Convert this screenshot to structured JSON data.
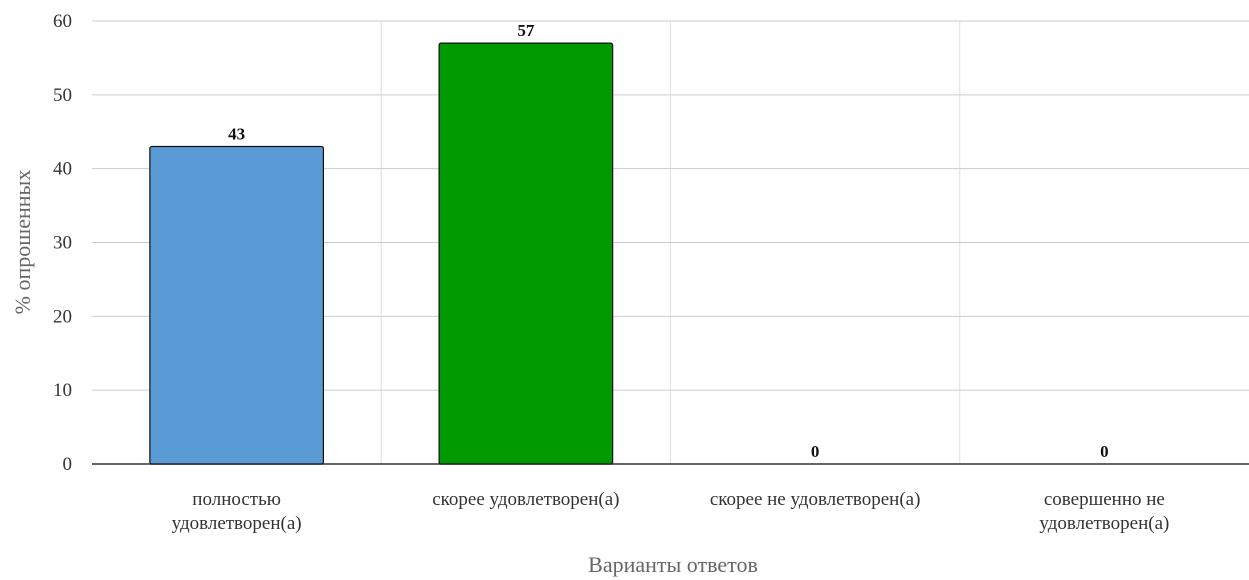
{
  "chart_data": {
    "type": "bar",
    "categories": [
      [
        "полностью",
        "удовлетворен(а)"
      ],
      [
        "скорее удовлетворен(а)"
      ],
      [
        "скорее не удовлетворен(а)"
      ],
      [
        "совершенно не",
        "удовлетворен(а)"
      ]
    ],
    "values": [
      43,
      57,
      0,
      0
    ],
    "colors": [
      "#5b9bd5",
      "#009900",
      "#5b9bd5",
      "#5b9bd5"
    ],
    "xlabel": "Варианты ответов",
    "ylabel": "% опрошенных",
    "ylim": [
      0,
      60
    ],
    "yticks": [
      0,
      10,
      20,
      30,
      40,
      50,
      60
    ],
    "grid": true
  }
}
